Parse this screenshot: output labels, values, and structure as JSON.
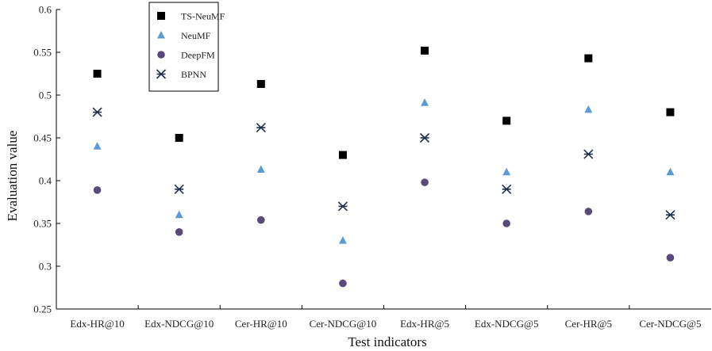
{
  "chart_data": {
    "type": "scatter",
    "title": "",
    "xlabel": "Test indicators",
    "ylabel": "Evaluation value",
    "categories": [
      "Edx-HR@10",
      "Edx-NDCG@10",
      "Cer-HR@10",
      "Cer-NDCG@10",
      "Edx-HR@5",
      "Edx-NDCG@5",
      "Cer-HR@5",
      "Cer-NDCG@5"
    ],
    "ylim": [
      0.25,
      0.6
    ],
    "yticks": [
      "0.25",
      "0.3",
      "0.35",
      "0.4",
      "0.45",
      "0.5",
      "0.55",
      "0.6"
    ],
    "grid": false,
    "legend_position": "top-left",
    "series": [
      {
        "name": "TS-NeuMF",
        "marker": "square",
        "color": "#000000",
        "values": [
          0.525,
          0.45,
          0.513,
          0.43,
          0.552,
          0.47,
          0.543,
          0.48
        ]
      },
      {
        "name": "NeuMF",
        "marker": "triangle",
        "color": "#5b9bd5",
        "values": [
          0.44,
          0.36,
          0.413,
          0.33,
          0.491,
          0.41,
          0.483,
          0.41
        ]
      },
      {
        "name": "DeepFM",
        "marker": "circle",
        "color": "#5a4a7a",
        "values": [
          0.389,
          0.34,
          0.354,
          0.28,
          0.398,
          0.35,
          0.364,
          0.31
        ]
      },
      {
        "name": "BPNN",
        "marker": "asterisk",
        "color": "#1f2f4f",
        "values": [
          0.48,
          0.39,
          0.462,
          0.37,
          0.45,
          0.39,
          0.431,
          0.36
        ]
      }
    ]
  }
}
